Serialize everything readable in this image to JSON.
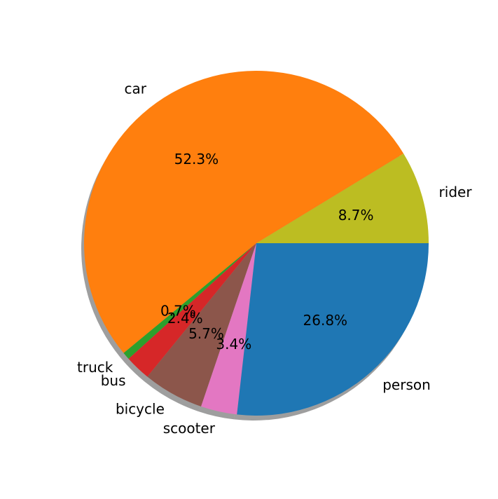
{
  "chart_data": {
    "type": "pie",
    "shadow": true,
    "start_angle": 0,
    "direction": "counterclockwise",
    "slices": [
      {
        "label": "rider",
        "value": 8.7,
        "pct_label": "8.7%",
        "color": "#bcbd22"
      },
      {
        "label": "car",
        "value": 52.3,
        "pct_label": "52.3%",
        "color": "#ff7f0e"
      },
      {
        "label": "truck",
        "value": 0.7,
        "pct_label": "0.7%",
        "color": "#2ca02c"
      },
      {
        "label": "bus",
        "value": 2.4,
        "pct_label": "2.4%",
        "color": "#d62728"
      },
      {
        "label": "bicycle",
        "value": 5.7,
        "pct_label": "5.7%",
        "color": "#8c564b"
      },
      {
        "label": "scooter",
        "value": 3.4,
        "pct_label": "3.4%",
        "color": "#e377c2"
      },
      {
        "label": "person",
        "value": 26.8,
        "pct_label": "26.8%",
        "color": "#1f77b4"
      }
    ]
  }
}
